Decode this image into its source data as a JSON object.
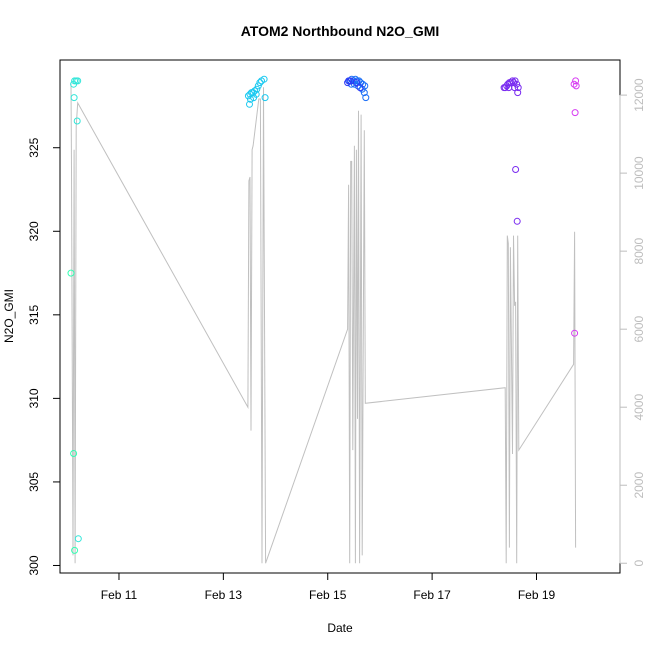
{
  "chart_data": {
    "type": "scatter",
    "title": "ATOM2 Northbound N2O_GMI",
    "xlabel": "Date",
    "ylabel": "N2O_GMI",
    "x_unit": "day of February",
    "xlim": [
      9.87,
      20.6
    ],
    "ylim": [
      299.55,
      330.25
    ],
    "y2lim": [
      -250,
      12900
    ],
    "x_ticks": [
      {
        "value": 11,
        "label": "Feb 11"
      },
      {
        "value": 13,
        "label": "Feb 13"
      },
      {
        "value": 15,
        "label": "Feb 15"
      },
      {
        "value": 17,
        "label": "Feb 17"
      },
      {
        "value": 19,
        "label": "Feb 19"
      }
    ],
    "y_ticks": [
      300,
      305,
      310,
      315,
      320,
      325
    ],
    "y2_ticks": [
      0,
      2000,
      4000,
      6000,
      8000,
      10000,
      12000
    ],
    "grid": false,
    "legend": "none",
    "secondary_series": {
      "color": "#c0c0c0",
      "points": [
        [
          10.08,
          12300
        ],
        [
          10.09,
          10100
        ],
        [
          10.12,
          200
        ],
        [
          10.14,
          10600
        ],
        [
          10.16,
          0
        ],
        [
          10.18,
          11200
        ],
        [
          10.21,
          11800
        ],
        [
          13.47,
          4000
        ],
        [
          13.49,
          9800
        ],
        [
          13.51,
          9900
        ],
        [
          13.53,
          3400
        ],
        [
          13.55,
          10600
        ],
        [
          13.57,
          10700
        ],
        [
          13.68,
          11900
        ],
        [
          13.71,
          11900
        ],
        [
          13.74,
          0
        ],
        [
          13.77,
          12200
        ],
        [
          13.81,
          0
        ],
        [
          15.38,
          6000
        ],
        [
          15.4,
          9700
        ],
        [
          15.42,
          0
        ],
        [
          15.44,
          10300
        ],
        [
          15.46,
          10300
        ],
        [
          15.48,
          2900
        ],
        [
          15.51,
          10700
        ],
        [
          15.53,
          0
        ],
        [
          15.55,
          10600
        ],
        [
          15.57,
          3700
        ],
        [
          15.59,
          11600
        ],
        [
          15.61,
          0
        ],
        [
          15.64,
          11500
        ],
        [
          15.66,
          200
        ],
        [
          15.7,
          11100
        ],
        [
          15.72,
          4100
        ],
        [
          18.4,
          4500
        ],
        [
          18.42,
          0
        ],
        [
          18.44,
          8400
        ],
        [
          18.46,
          8200
        ],
        [
          18.48,
          400
        ],
        [
          18.5,
          8100
        ],
        [
          18.54,
          2800
        ],
        [
          18.56,
          8400
        ],
        [
          18.58,
          6600
        ],
        [
          18.6,
          6700
        ],
        [
          18.62,
          0
        ],
        [
          18.64,
          8400
        ],
        [
          18.66,
          2900
        ],
        [
          19.71,
          5100
        ],
        [
          19.73,
          8500
        ],
        [
          19.75,
          400
        ]
      ]
    },
    "series": [
      {
        "color": "#33ffb3",
        "points": [
          [
            10.08,
            317.5
          ],
          [
            10.13,
            306.7
          ],
          [
            10.15,
            300.9
          ]
        ]
      },
      {
        "color": "#33e6d9",
        "points": [
          [
            10.13,
            328.8
          ],
          [
            10.15,
            329.0
          ],
          [
            10.18,
            329.0
          ],
          [
            10.21,
            329.0
          ],
          [
            10.14,
            328.0
          ],
          [
            10.2,
            326.6
          ],
          [
            10.22,
            301.6
          ]
        ]
      },
      {
        "color": "#1ac9f0",
        "points": [
          [
            13.48,
            328.1
          ],
          [
            13.51,
            328.2
          ],
          [
            13.54,
            328.3
          ],
          [
            13.57,
            328.3
          ],
          [
            13.6,
            328.4
          ],
          [
            13.64,
            328.5
          ],
          [
            13.67,
            328.7
          ],
          [
            13.7,
            328.9
          ],
          [
            13.73,
            329.0
          ],
          [
            13.78,
            329.1
          ],
          [
            13.52,
            327.9
          ],
          [
            13.5,
            327.6
          ],
          [
            13.58,
            328.0
          ],
          [
            13.63,
            328.2
          ],
          [
            13.8,
            328.0
          ]
        ]
      },
      {
        "color": "#1a6ef7",
        "points": [
          [
            15.42,
            329.0
          ],
          [
            15.46,
            329.1
          ],
          [
            15.49,
            329.0
          ],
          [
            15.53,
            329.1
          ],
          [
            15.56,
            329.0
          ],
          [
            15.6,
            329.0
          ],
          [
            15.63,
            328.9
          ],
          [
            15.67,
            328.8
          ],
          [
            15.71,
            328.7
          ],
          [
            15.45,
            328.8
          ],
          [
            15.51,
            328.8
          ],
          [
            15.58,
            328.7
          ],
          [
            15.66,
            328.5
          ],
          [
            15.7,
            328.3
          ],
          [
            15.73,
            328.0
          ]
        ]
      },
      {
        "color": "#2d3bf5",
        "points": [
          [
            15.38,
            328.9
          ],
          [
            15.4,
            329.0
          ],
          [
            15.44,
            329.0
          ],
          [
            15.55,
            328.9
          ],
          [
            15.62,
            328.6
          ]
        ]
      },
      {
        "color": "#7a2cf0",
        "points": [
          [
            18.38,
            328.6
          ],
          [
            18.4,
            328.6
          ],
          [
            18.43,
            328.7
          ],
          [
            18.45,
            328.8
          ],
          [
            18.48,
            328.9
          ],
          [
            18.51,
            328.9
          ],
          [
            18.54,
            329.0
          ],
          [
            18.56,
            328.9
          ],
          [
            18.59,
            329.0
          ],
          [
            18.62,
            328.8
          ],
          [
            18.65,
            328.6
          ],
          [
            18.47,
            328.6
          ],
          [
            18.58,
            328.6
          ],
          [
            18.64,
            328.3
          ],
          [
            18.6,
            323.7
          ],
          [
            18.63,
            320.6
          ]
        ]
      },
      {
        "color": "#d73cf2",
        "points": [
          [
            19.72,
            328.8
          ],
          [
            19.75,
            329.0
          ],
          [
            19.76,
            328.7
          ],
          [
            19.74,
            327.1
          ],
          [
            19.73,
            313.9
          ]
        ]
      }
    ]
  }
}
